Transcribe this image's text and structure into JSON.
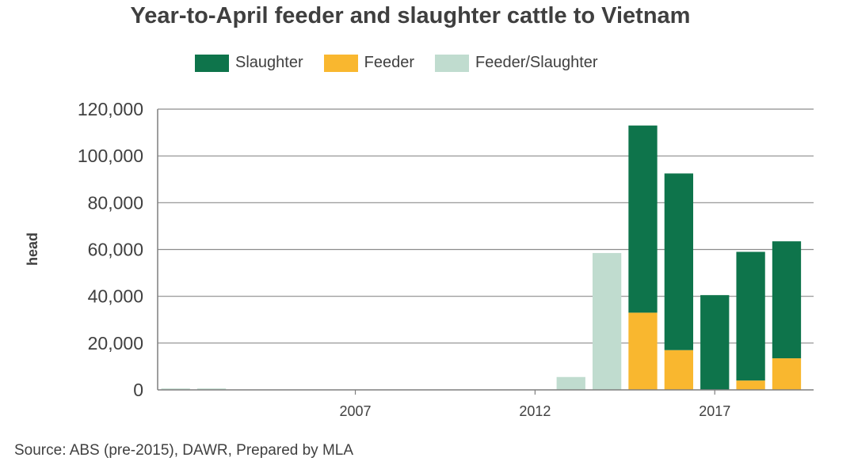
{
  "chart_data": {
    "type": "bar",
    "stacked": true,
    "title": "Year-to-April feeder and slaughter cattle to Vietnam",
    "ylabel": "head",
    "xlabel": "",
    "ylim": [
      0,
      120000
    ],
    "yticks": [
      0,
      20000,
      40000,
      60000,
      80000,
      100000,
      120000
    ],
    "ytick_labels": [
      "0",
      "20,000",
      "40,000",
      "60,000",
      "80,000",
      "100,000",
      "120,000"
    ],
    "xlim": [
      2001.5,
      2019.75
    ],
    "xtick_values": [
      2007,
      2012,
      2017
    ],
    "xtick_labels": [
      "2007",
      "2012",
      "2017"
    ],
    "grid": true,
    "legend_position": "top",
    "x": [
      2002,
      2003,
      2004,
      2005,
      2006,
      2007,
      2008,
      2009,
      2010,
      2011,
      2012,
      2013,
      2014,
      2015,
      2016,
      2017,
      2018,
      2019
    ],
    "series": [
      {
        "name": "Slaughter",
        "color": "#0e744b",
        "values": [
          0,
          0,
          0,
          0,
          0,
          0,
          0,
          0,
          0,
          0,
          0,
          0,
          0,
          80000,
          75500,
          40500,
          55000,
          50000
        ]
      },
      {
        "name": "Feeder",
        "color": "#f9b72f",
        "values": [
          0,
          0,
          0,
          0,
          0,
          0,
          0,
          0,
          0,
          0,
          0,
          0,
          0,
          33000,
          17000,
          0,
          4000,
          13500
        ]
      },
      {
        "name": "Feeder/Slaughter",
        "color": "#c0dccf",
        "values": [
          600,
          600,
          0,
          0,
          0,
          0,
          0,
          0,
          0,
          0,
          0,
          5500,
          58500,
          0,
          0,
          0,
          0,
          0
        ]
      }
    ],
    "stack_order": [
      "Feeder",
      "Slaughter",
      "Feeder/Slaughter"
    ],
    "source": "Source: ABS (pre-2015), DAWR, Prepared by MLA"
  }
}
